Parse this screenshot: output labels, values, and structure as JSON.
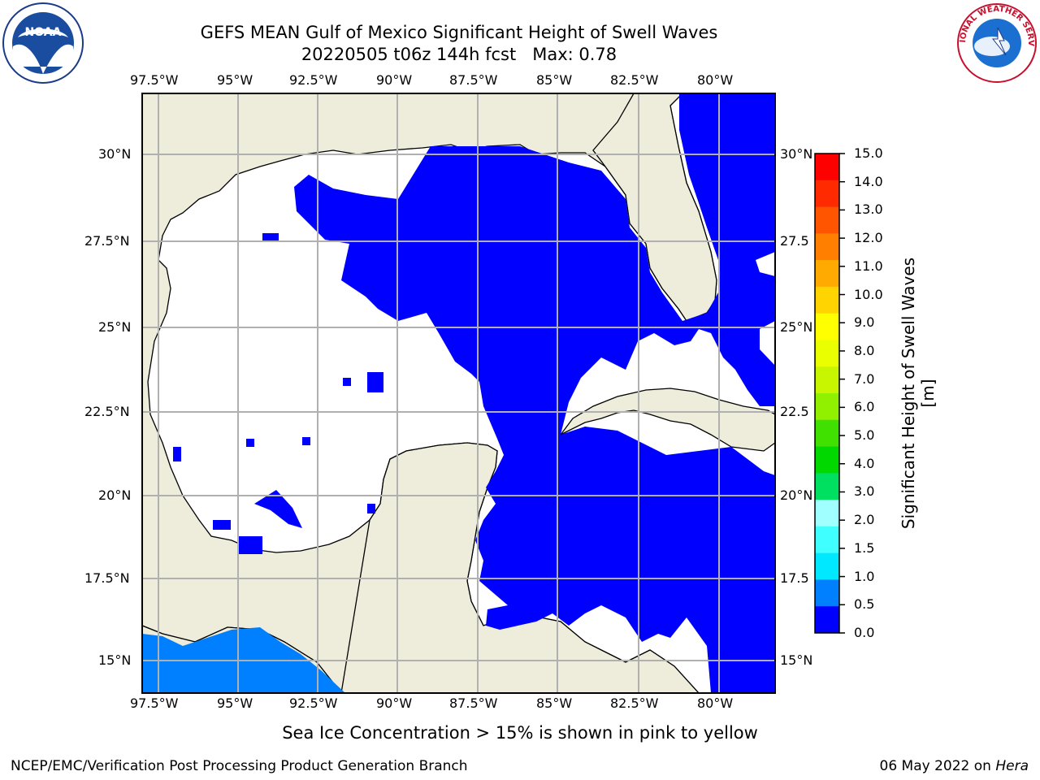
{
  "title": {
    "line1": "GEFS MEAN Gulf of Mexico Significant Height of Swell Waves",
    "line2": "20220505 t06z 144h fcst   Max: 0.78"
  },
  "map": {
    "lon_ticks": [
      "97.5°W",
      "95°W",
      "92.5°W",
      "90°W",
      "87.5°W",
      "85°W",
      "82.5°W",
      "80°W"
    ],
    "lat_ticks_left": [
      "30°N",
      "27.5°N",
      "25°N",
      "22.5°N",
      "20°N",
      "17.5°N",
      "15°N"
    ],
    "lat_ticks_right": [
      "30°N",
      "27.5",
      "25°N",
      "22.5",
      "20°N",
      "17.5",
      "15°N"
    ],
    "colors": {
      "land": "#eeeddc",
      "sea_0_05": "#0000ff",
      "sea_05_10": "#0080ff",
      "grid": "#b0b0b0"
    }
  },
  "colorbar": {
    "label": "Significant Height of Swell Waves [m]",
    "ticks": [
      "15.0",
      "14.0",
      "13.0",
      "12.0",
      "11.0",
      "10.0",
      "9.0",
      "8.0",
      "7.0",
      "6.0",
      "5.0",
      "4.0",
      "3.0",
      "2.0",
      "1.5",
      "1.0",
      "0.5",
      "0.0"
    ],
    "colors": [
      "#ff0000",
      "#ff2a00",
      "#ff5500",
      "#ff8000",
      "#ffaa00",
      "#ffd400",
      "#ffff00",
      "#eaff00",
      "#c8f500",
      "#90f000",
      "#40e000",
      "#00d800",
      "#00e060",
      "#a0ffff",
      "#40ffff",
      "#00e8ff",
      "#0080ff",
      "#0000ff"
    ]
  },
  "note": "Sea Ice Concentration > 15% is shown in pink to yellow",
  "footer": {
    "left": "NCEP/EMC/Verification Post Processing Product Generation Branch",
    "right_date": "06 May 2022 on ",
    "right_host": "Hera"
  },
  "logos": {
    "left": "NOAA",
    "right": "NATIONAL WEATHER SERVICE"
  }
}
